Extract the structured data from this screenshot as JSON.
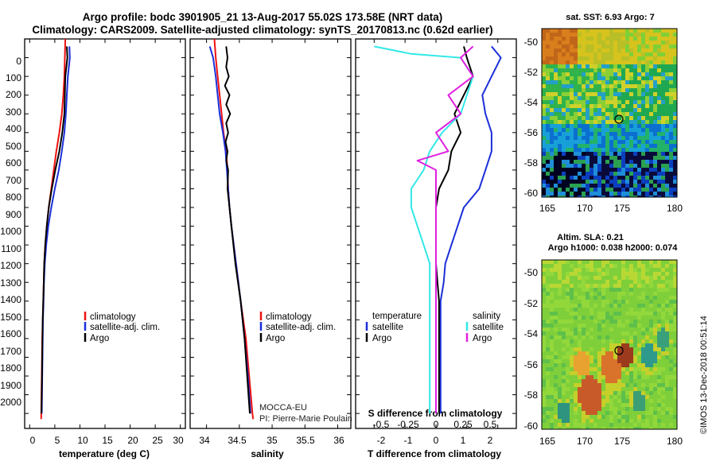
{
  "header": {
    "title_line1": "Argo profile: bodc 3901905_21 13-Aug-2017 55.02S 173.58E (NRT data)",
    "title_line2": "Climatology: CARS2009. Satellite-adjusted climatology: synTS_20170813.nc (0.62d earlier)"
  },
  "colors": {
    "climatology": "#ee1111",
    "satellite": "#1b2fd9",
    "argo": "#000000",
    "temp_argo": "#000000",
    "sal_satellite": "#33e8e8",
    "sal_argo": "#e020e0"
  },
  "depth_ticks": [
    "0",
    "100",
    "200",
    "300",
    "400",
    "500",
    "600",
    "700",
    "800",
    "900",
    "1000",
    "1100",
    "1200",
    "1300",
    "1400",
    "1500",
    "1600",
    "1700",
    "1800",
    "1900",
    "2000"
  ],
  "chart_data": [
    {
      "type": "line",
      "id": "temperature",
      "xlabel": "temperature (deg C)",
      "xlim": [
        -1,
        31
      ],
      "xticks": [
        0,
        5,
        10,
        15,
        20,
        25,
        30
      ],
      "xtick_labels": [
        "0",
        "5",
        "10",
        "15",
        "20",
        "25",
        "30"
      ],
      "ylim": [
        2080,
        0
      ],
      "legend": [
        "climatology",
        "satellite-adj. clim.",
        "Argo"
      ],
      "legend_placement": "center-left",
      "series": [
        {
          "name": "climatology",
          "color": "#ee1111",
          "points": [
            [
              7.1,
              0
            ],
            [
              7.0,
              100
            ],
            [
              6.9,
              200
            ],
            [
              6.7,
              300
            ],
            [
              6.4,
              400
            ],
            [
              5.9,
              500
            ],
            [
              5.3,
              600
            ],
            [
              4.8,
              700
            ],
            [
              4.3,
              800
            ],
            [
              3.8,
              900
            ],
            [
              3.4,
              1000
            ],
            [
              3.1,
              1100
            ],
            [
              2.9,
              1200
            ],
            [
              2.8,
              1300
            ],
            [
              2.7,
              1400
            ],
            [
              2.6,
              1500
            ],
            [
              2.5,
              1600
            ],
            [
              2.45,
              1700
            ],
            [
              2.4,
              1800
            ],
            [
              2.35,
              1900
            ],
            [
              2.3,
              2030
            ]
          ]
        },
        {
          "name": "satellite-adj. clim.",
          "color": "#1b2fd9",
          "points": [
            [
              7.9,
              40
            ],
            [
              8.0,
              100
            ],
            [
              7.6,
              200
            ],
            [
              7.4,
              300
            ],
            [
              7.2,
              400
            ],
            [
              6.9,
              500
            ],
            [
              6.4,
              600
            ],
            [
              5.8,
              700
            ],
            [
              5.0,
              800
            ],
            [
              4.3,
              900
            ],
            [
              3.7,
              1000
            ],
            [
              3.3,
              1100
            ],
            [
              3.0,
              1200
            ],
            [
              2.85,
              1300
            ],
            [
              2.75,
              1400
            ],
            [
              2.65,
              1500
            ],
            [
              2.6,
              1600
            ],
            [
              2.55,
              1700
            ],
            [
              2.5,
              1800
            ],
            [
              2.45,
              1900
            ],
            [
              2.4,
              2000
            ]
          ]
        },
        {
          "name": "Argo",
          "color": "#000000",
          "points": [
            [
              7.4,
              40
            ],
            [
              7.5,
              100
            ],
            [
              7.1,
              200
            ],
            [
              7.0,
              300
            ],
            [
              6.9,
              400
            ],
            [
              6.5,
              500
            ],
            [
              5.9,
              600
            ],
            [
              5.1,
              700
            ],
            [
              4.4,
              800
            ],
            [
              3.8,
              900
            ],
            [
              3.4,
              1000
            ],
            [
              3.1,
              1100
            ],
            [
              2.9,
              1200
            ],
            [
              2.8,
              1300
            ],
            [
              2.7,
              1400
            ],
            [
              2.6,
              1500
            ],
            [
              2.55,
              1600
            ],
            [
              2.5,
              1700
            ],
            [
              2.45,
              1800
            ],
            [
              2.4,
              1900
            ],
            [
              2.35,
              2000
            ]
          ]
        }
      ]
    },
    {
      "type": "line",
      "id": "salinity",
      "xlabel": "salinity",
      "xlim": [
        33.75,
        36.2
      ],
      "xticks": [
        34,
        34.5,
        35,
        35.5,
        36
      ],
      "xtick_labels": [
        "34",
        "34.5",
        "35",
        "35.5",
        "36"
      ],
      "ylim": [
        2080,
        0
      ],
      "legend": [
        "climatology",
        "satellite-adj. clim.",
        "Argo"
      ],
      "legend_placement": "center",
      "series": [
        {
          "name": "climatology",
          "color": "#ee1111",
          "points": [
            [
              34.12,
              0
            ],
            [
              34.14,
              100
            ],
            [
              34.17,
              200
            ],
            [
              34.2,
              300
            ],
            [
              34.23,
              400
            ],
            [
              34.26,
              500
            ],
            [
              34.3,
              600
            ],
            [
              34.32,
              700
            ],
            [
              34.33,
              800
            ],
            [
              34.35,
              900
            ],
            [
              34.38,
              1000
            ],
            [
              34.45,
              1200
            ],
            [
              34.52,
              1400
            ],
            [
              34.6,
              1600
            ],
            [
              34.65,
              1800
            ],
            [
              34.7,
              2000
            ],
            [
              34.71,
              2030
            ]
          ]
        },
        {
          "name": "satellite-adj. clim.",
          "color": "#1b2fd9",
          "points": [
            [
              34.05,
              40
            ],
            [
              34.1,
              100
            ],
            [
              34.14,
              200
            ],
            [
              34.17,
              300
            ],
            [
              34.2,
              400
            ],
            [
              34.25,
              500
            ],
            [
              34.29,
              600
            ],
            [
              34.31,
              700
            ],
            [
              34.33,
              800
            ],
            [
              34.35,
              900
            ],
            [
              34.38,
              1000
            ],
            [
              34.45,
              1200
            ],
            [
              34.52,
              1400
            ],
            [
              34.58,
              1600
            ],
            [
              34.63,
              1800
            ],
            [
              34.67,
              2000
            ]
          ]
        },
        {
          "name": "Argo",
          "color": "#000000",
          "points": [
            [
              34.3,
              40
            ],
            [
              34.32,
              100
            ],
            [
              34.3,
              150
            ],
            [
              34.34,
              200
            ],
            [
              34.28,
              250
            ],
            [
              34.35,
              300
            ],
            [
              34.3,
              350
            ],
            [
              34.36,
              400
            ],
            [
              34.3,
              450
            ],
            [
              34.33,
              500
            ],
            [
              34.29,
              550
            ],
            [
              34.32,
              600
            ],
            [
              34.3,
              650
            ],
            [
              34.33,
              700
            ],
            [
              34.32,
              800
            ],
            [
              34.35,
              900
            ],
            [
              34.38,
              1000
            ],
            [
              34.44,
              1200
            ],
            [
              34.52,
              1400
            ],
            [
              34.58,
              1600
            ],
            [
              34.62,
              1800
            ],
            [
              34.66,
              2000
            ]
          ]
        }
      ]
    },
    {
      "type": "line",
      "id": "difference",
      "xlabel": "T difference from climatology",
      "xlabel_top": "S difference from climatology",
      "xlim": [
        -2.6,
        2.6
      ],
      "xticks": [
        -2,
        -1,
        0,
        1,
        2
      ],
      "xtick_labels": [
        "-2",
        "-1",
        "0",
        "1",
        "2"
      ],
      "xticks_top": [
        -0.5,
        -0.25,
        0,
        0.25,
        0.5
      ],
      "xtick_labels_top": [
        "-0.5",
        "-0.25",
        "0",
        "0.25",
        "0.5"
      ],
      "ylim": [
        2080,
        0
      ],
      "legend_headers": [
        "temperature",
        "salinity"
      ],
      "legend_temperature": [
        "satellite",
        "Argo"
      ],
      "legend_salinity": [
        "satellite",
        "Argo"
      ],
      "series": [
        {
          "name": "satellite",
          "group": "temperature",
          "color": "#1b2fd9",
          "points": [
            [
              1.8,
              40
            ],
            [
              2.1,
              100
            ],
            [
              1.8,
              200
            ],
            [
              1.5,
              300
            ],
            [
              1.6,
              400
            ],
            [
              1.8,
              500
            ],
            [
              1.8,
              600
            ],
            [
              1.6,
              700
            ],
            [
              1.4,
              800
            ],
            [
              0.9,
              900
            ],
            [
              0.7,
              1000
            ],
            [
              0.5,
              1100
            ],
            [
              0.3,
              1200
            ],
            [
              0.25,
              1300
            ],
            [
              0.15,
              1400
            ],
            [
              0.15,
              1500
            ],
            [
              0.15,
              1600
            ],
            [
              0.15,
              1700
            ],
            [
              0.15,
              1800
            ],
            [
              0.15,
              2000
            ]
          ]
        },
        {
          "name": "Argo",
          "group": "temperature",
          "color": "#000000",
          "points": [
            [
              0.9,
              40
            ],
            [
              1.0,
              100
            ],
            [
              1.2,
              200
            ],
            [
              0.9,
              300
            ],
            [
              0.6,
              400
            ],
            [
              0.8,
              500
            ],
            [
              0.5,
              600
            ],
            [
              0.4,
              700
            ],
            [
              0.1,
              800
            ],
            [
              0.0,
              900
            ],
            [
              0.0,
              1000
            ],
            [
              0.0,
              1100
            ],
            [
              0.0,
              1200
            ],
            [
              0.05,
              1300
            ],
            [
              0.1,
              1400
            ],
            [
              0.1,
              1500
            ],
            [
              0.1,
              1600
            ],
            [
              0.1,
              1700
            ],
            [
              0.1,
              1800
            ],
            [
              0.1,
              1900
            ],
            [
              0.1,
              2000
            ]
          ]
        },
        {
          "name": "satellite",
          "group": "salinity",
          "color": "#33e8e8",
          "points": [
            [
              -0.5,
              40
            ],
            [
              -0.2,
              80
            ],
            [
              0.2,
              100
            ],
            [
              0.3,
              200
            ],
            [
              0.25,
              300
            ],
            [
              0.2,
              400
            ],
            [
              0.05,
              500
            ],
            [
              -0.05,
              600
            ],
            [
              -0.1,
              700
            ],
            [
              -0.2,
              800
            ],
            [
              -0.2,
              900
            ],
            [
              -0.15,
              1000
            ],
            [
              -0.1,
              1100
            ],
            [
              -0.05,
              1200
            ],
            [
              -0.05,
              1400
            ],
            [
              -0.05,
              1600
            ],
            [
              -0.05,
              1800
            ],
            [
              -0.05,
              2000
            ]
          ]
        },
        {
          "name": "Argo",
          "group": "salinity",
          "color": "#e020e0",
          "points": [
            [
              0.3,
              40
            ],
            [
              0.2,
              100
            ],
            [
              0.3,
              200
            ],
            [
              0.1,
              300
            ],
            [
              0.2,
              400
            ],
            [
              0.0,
              500
            ],
            [
              0.1,
              600
            ],
            [
              -0.15,
              650
            ],
            [
              0.0,
              700
            ],
            [
              0.0,
              800
            ],
            [
              0.0,
              1000
            ],
            [
              0.0,
              1200
            ],
            [
              0.0,
              1400
            ],
            [
              0.0,
              1600
            ],
            [
              0.0,
              1800
            ],
            [
              0.0,
              2000
            ]
          ]
        }
      ]
    },
    {
      "type": "heatmap",
      "id": "sst-map",
      "title": "sat. SST: 6.93 Argo: 7",
      "xticks": [
        "165",
        "170",
        "175",
        "180"
      ],
      "yticks": [
        "-50",
        "-52",
        "-54",
        "-56",
        "-58",
        "-60"
      ],
      "xlim": [
        164,
        182
      ],
      "ylim": [
        -60.3,
        -49.6
      ],
      "argo_position": {
        "lon": 173.58,
        "lat": -55.02
      }
    },
    {
      "type": "heatmap",
      "id": "sla-map",
      "title_line1": "Altim. SLA: 0.21",
      "title_line2": "Argo h1000: 0.038 h2000: 0.074",
      "xticks": [
        "165",
        "170",
        "175",
        "180"
      ],
      "yticks": [
        "-50",
        "-52",
        "-54",
        "-56",
        "-58",
        "-60"
      ],
      "xlim": [
        164,
        182
      ],
      "ylim": [
        -60.3,
        -49.6
      ],
      "argo_position": {
        "lon": 173.58,
        "lat": -55.02
      }
    }
  ],
  "credits": {
    "mocca": "MOCCA-EU",
    "pi": "PI: Pierre-Marie Poulain",
    "imos": "©IMOS 13-Dec-2018 00:51:14"
  }
}
